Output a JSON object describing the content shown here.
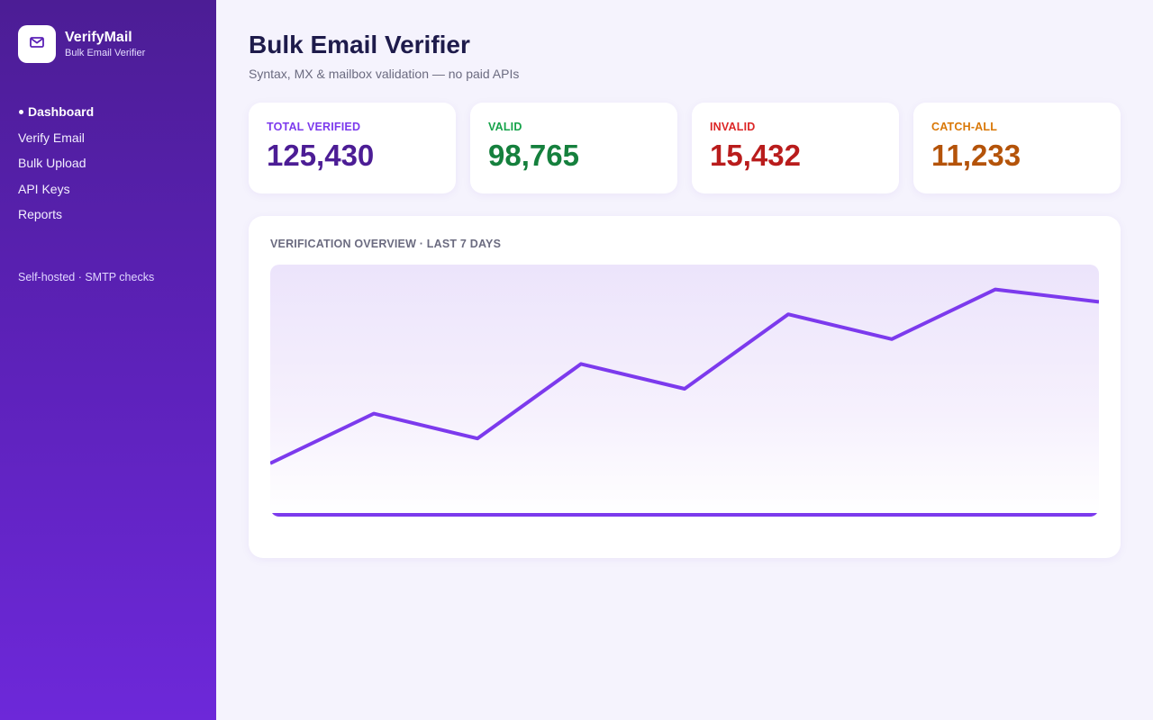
{
  "brand": {
    "name": "VerifyMail",
    "subtitle": "Bulk Email Verifier",
    "icon": "mail-icon"
  },
  "nav": {
    "items": [
      {
        "label": "Dashboard",
        "active": true
      },
      {
        "label": "Verify Email",
        "active": false
      },
      {
        "label": "Bulk Upload",
        "active": false
      },
      {
        "label": "API Keys",
        "active": false
      },
      {
        "label": "Reports",
        "active": false
      }
    ]
  },
  "sidebar_footer": "Self-hosted · SMTP checks",
  "header": {
    "title": "Bulk Email Verifier",
    "subtitle": "Syntax, MX & mailbox validation — no paid APIs"
  },
  "stats": [
    {
      "label": "TOTAL VERIFIED",
      "value": "125,430",
      "color": "#4c1d95"
    },
    {
      "label": "VALID",
      "value": "98,765",
      "color": "#15803d"
    },
    {
      "label": "INVALID",
      "value": "15,432",
      "color": "#b91c1c"
    },
    {
      "label": "CATCH-ALL",
      "value": "11,233",
      "color": "#b45309"
    }
  ],
  "chart": {
    "title": "VERIFICATION OVERVIEW · LAST 7 DAYS"
  },
  "chart_data": {
    "type": "line",
    "title": "VERIFICATION OVERVIEW · LAST 7 DAYS",
    "values": [
      20,
      40,
      30,
      60,
      50,
      80,
      70,
      90,
      85
    ],
    "ylim": [
      0,
      100
    ],
    "grid": false,
    "legend": "none",
    "line_color": "#7c3aed"
  }
}
